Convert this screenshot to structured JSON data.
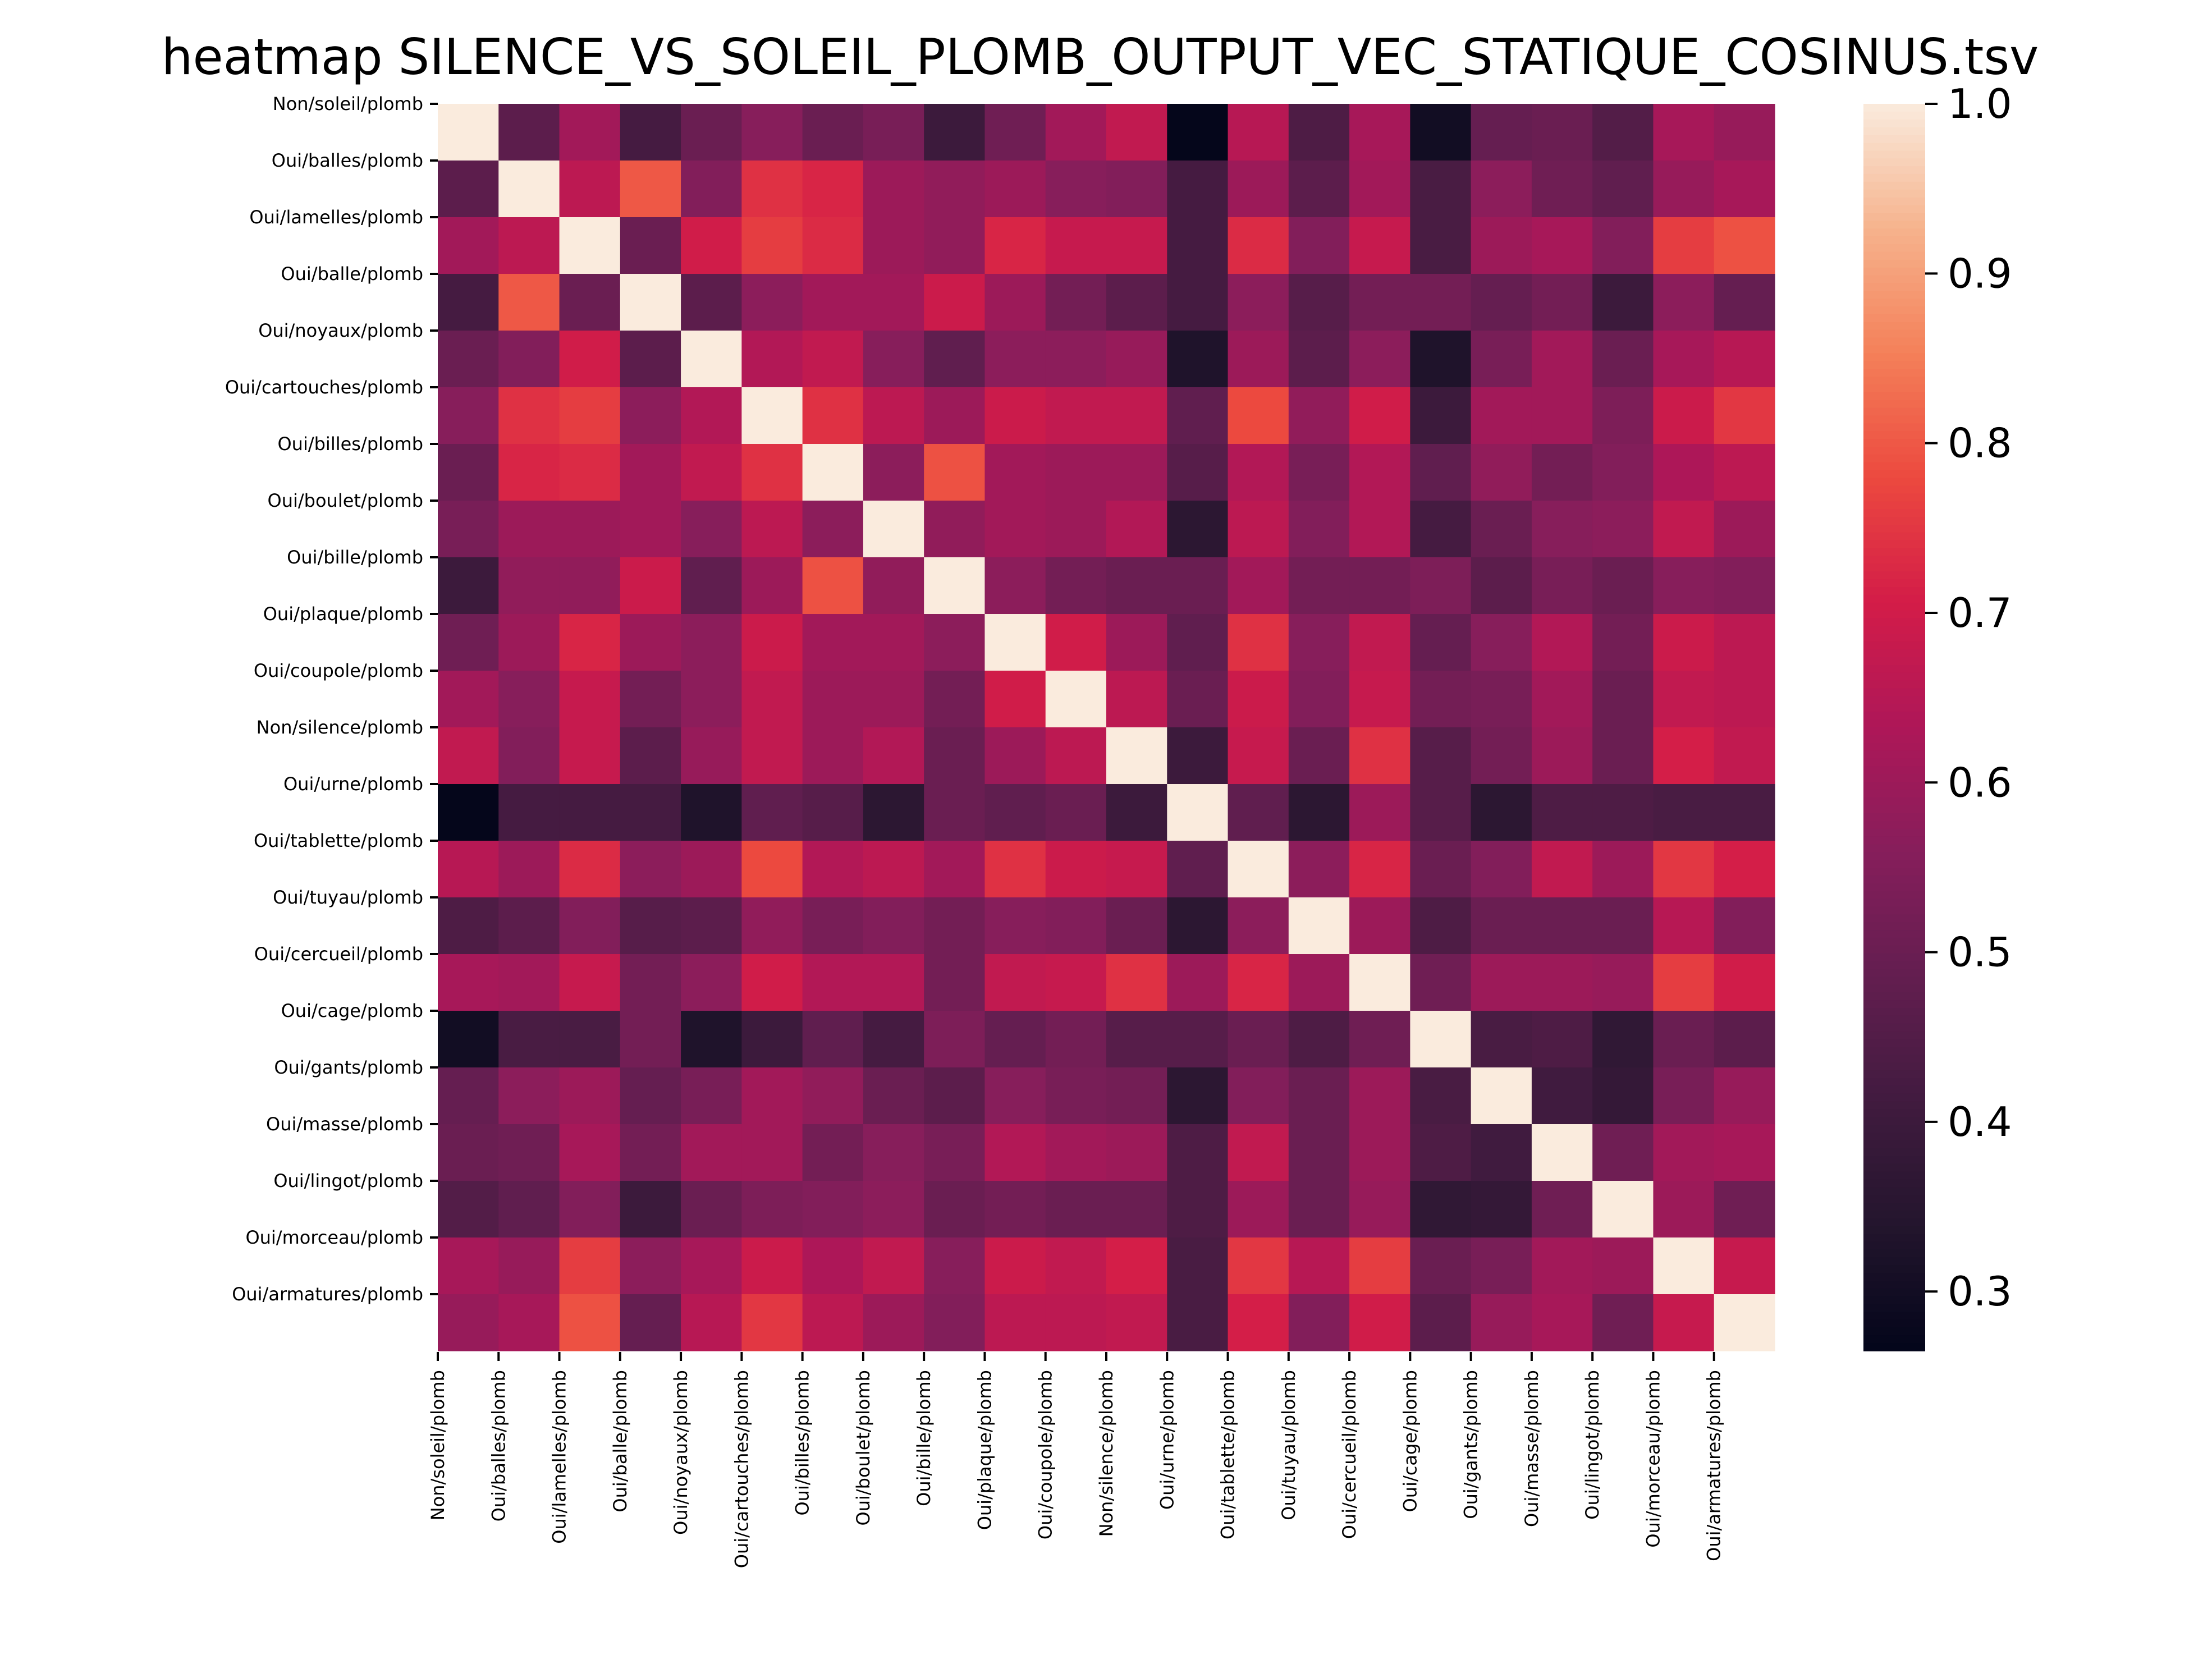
{
  "chart_data": {
    "type": "heatmap",
    "title": "heatmap SILENCE_VS_SOLEIL_PLOMB_OUTPUT_VEC_STATIQUE_COSINUS.tsv",
    "row_labels": [
      "Non/soleil/plomb",
      "Oui/balles/plomb",
      "Oui/lamelles/plomb",
      "Oui/balle/plomb",
      "Oui/noyaux/plomb",
      "Oui/cartouches/plomb",
      "Oui/billes/plomb",
      "Oui/boulet/plomb",
      "Oui/bille/plomb",
      "Oui/plaque/plomb",
      "Oui/coupole/plomb",
      "Non/silence/plomb",
      "Oui/urne/plomb",
      "Oui/tablette/plomb",
      "Oui/tuyau/plomb",
      "Oui/cercueil/plomb",
      "Oui/cage/plomb",
      "Oui/gants/plomb",
      "Oui/masse/plomb",
      "Oui/lingot/plomb",
      "Oui/morceau/plomb",
      "Oui/armatures/plomb"
    ],
    "col_labels": [
      "Non/soleil/plomb",
      "Oui/balles/plomb",
      "Oui/lamelles/plomb",
      "Oui/balle/plomb",
      "Oui/noyaux/plomb",
      "Oui/cartouches/plomb",
      "Oui/billes/plomb",
      "Oui/boulet/plomb",
      "Oui/bille/plomb",
      "Oui/plaque/plomb",
      "Oui/coupole/plomb",
      "Non/silence/plomb",
      "Oui/urne/plomb",
      "Oui/tablette/plomb",
      "Oui/tuyau/plomb",
      "Oui/cercueil/plomb",
      "Oui/cage/plomb",
      "Oui/gants/plomb",
      "Oui/masse/plomb",
      "Oui/lingot/plomb",
      "Oui/morceau/plomb",
      "Oui/armatures/plomb"
    ],
    "values": [
      [
        1.0,
        0.47,
        0.61,
        0.42,
        0.5,
        0.56,
        0.5,
        0.53,
        0.4,
        0.51,
        0.61,
        0.67,
        0.27,
        0.65,
        0.44,
        0.62,
        0.3,
        0.49,
        0.5,
        0.45,
        0.62,
        0.59
      ],
      [
        0.47,
        1.0,
        0.66,
        0.8,
        0.55,
        0.74,
        0.72,
        0.6,
        0.58,
        0.6,
        0.56,
        0.55,
        0.42,
        0.6,
        0.47,
        0.61,
        0.43,
        0.57,
        0.51,
        0.48,
        0.59,
        0.62
      ],
      [
        0.61,
        0.66,
        1.0,
        0.5,
        0.7,
        0.76,
        0.73,
        0.6,
        0.58,
        0.72,
        0.68,
        0.68,
        0.42,
        0.73,
        0.55,
        0.68,
        0.43,
        0.6,
        0.62,
        0.55,
        0.76,
        0.79
      ],
      [
        0.42,
        0.8,
        0.5,
        1.0,
        0.47,
        0.57,
        0.61,
        0.61,
        0.69,
        0.6,
        0.52,
        0.47,
        0.42,
        0.57,
        0.46,
        0.52,
        0.52,
        0.49,
        0.52,
        0.4,
        0.57,
        0.49
      ],
      [
        0.5,
        0.55,
        0.7,
        0.47,
        1.0,
        0.64,
        0.67,
        0.56,
        0.48,
        0.57,
        0.57,
        0.59,
        0.33,
        0.6,
        0.47,
        0.57,
        0.33,
        0.53,
        0.61,
        0.5,
        0.62,
        0.65
      ],
      [
        0.56,
        0.74,
        0.76,
        0.57,
        0.64,
        1.0,
        0.74,
        0.66,
        0.6,
        0.69,
        0.67,
        0.67,
        0.48,
        0.78,
        0.58,
        0.7,
        0.4,
        0.61,
        0.61,
        0.54,
        0.69,
        0.75
      ],
      [
        0.5,
        0.72,
        0.73,
        0.61,
        0.67,
        0.74,
        1.0,
        0.57,
        0.79,
        0.61,
        0.6,
        0.6,
        0.46,
        0.64,
        0.53,
        0.64,
        0.48,
        0.58,
        0.52,
        0.55,
        0.63,
        0.66
      ],
      [
        0.53,
        0.6,
        0.6,
        0.61,
        0.56,
        0.66,
        0.57,
        1.0,
        0.58,
        0.61,
        0.6,
        0.64,
        0.36,
        0.66,
        0.55,
        0.64,
        0.42,
        0.5,
        0.56,
        0.57,
        0.67,
        0.6
      ],
      [
        0.4,
        0.58,
        0.58,
        0.69,
        0.48,
        0.6,
        0.79,
        0.58,
        1.0,
        0.57,
        0.52,
        0.5,
        0.5,
        0.61,
        0.52,
        0.52,
        0.54,
        0.47,
        0.53,
        0.5,
        0.56,
        0.55
      ],
      [
        0.51,
        0.6,
        0.72,
        0.6,
        0.57,
        0.69,
        0.61,
        0.61,
        0.57,
        1.0,
        0.7,
        0.6,
        0.48,
        0.74,
        0.56,
        0.67,
        0.49,
        0.56,
        0.64,
        0.52,
        0.69,
        0.66
      ],
      [
        0.61,
        0.56,
        0.68,
        0.52,
        0.57,
        0.67,
        0.6,
        0.6,
        0.52,
        0.7,
        1.0,
        0.66,
        0.5,
        0.69,
        0.55,
        0.68,
        0.52,
        0.53,
        0.61,
        0.5,
        0.67,
        0.66
      ],
      [
        0.67,
        0.55,
        0.68,
        0.47,
        0.59,
        0.67,
        0.6,
        0.64,
        0.5,
        0.6,
        0.66,
        1.0,
        0.4,
        0.68,
        0.5,
        0.74,
        0.46,
        0.52,
        0.6,
        0.5,
        0.71,
        0.67
      ],
      [
        0.27,
        0.42,
        0.42,
        0.42,
        0.33,
        0.48,
        0.46,
        0.36,
        0.5,
        0.48,
        0.5,
        0.4,
        1.0,
        0.48,
        0.36,
        0.6,
        0.46,
        0.36,
        0.44,
        0.44,
        0.43,
        0.43
      ],
      [
        0.65,
        0.6,
        0.73,
        0.57,
        0.6,
        0.78,
        0.64,
        0.66,
        0.61,
        0.74,
        0.69,
        0.68,
        0.48,
        1.0,
        0.57,
        0.72,
        0.5,
        0.55,
        0.67,
        0.6,
        0.75,
        0.71
      ],
      [
        0.44,
        0.47,
        0.55,
        0.46,
        0.47,
        0.58,
        0.53,
        0.55,
        0.52,
        0.56,
        0.55,
        0.5,
        0.36,
        0.57,
        1.0,
        0.6,
        0.44,
        0.5,
        0.5,
        0.5,
        0.65,
        0.55
      ],
      [
        0.62,
        0.61,
        0.68,
        0.52,
        0.57,
        0.7,
        0.64,
        0.64,
        0.52,
        0.67,
        0.68,
        0.74,
        0.6,
        0.72,
        0.6,
        1.0,
        0.51,
        0.6,
        0.6,
        0.59,
        0.76,
        0.7
      ],
      [
        0.3,
        0.43,
        0.43,
        0.52,
        0.33,
        0.4,
        0.48,
        0.42,
        0.54,
        0.49,
        0.52,
        0.46,
        0.46,
        0.5,
        0.44,
        0.51,
        1.0,
        0.43,
        0.44,
        0.37,
        0.5,
        0.47
      ],
      [
        0.49,
        0.57,
        0.6,
        0.49,
        0.53,
        0.61,
        0.58,
        0.5,
        0.47,
        0.56,
        0.53,
        0.52,
        0.36,
        0.55,
        0.5,
        0.6,
        0.43,
        1.0,
        0.41,
        0.38,
        0.53,
        0.59
      ],
      [
        0.5,
        0.51,
        0.62,
        0.52,
        0.61,
        0.61,
        0.52,
        0.56,
        0.53,
        0.64,
        0.61,
        0.6,
        0.44,
        0.67,
        0.5,
        0.6,
        0.44,
        0.41,
        1.0,
        0.51,
        0.61,
        0.62
      ],
      [
        0.45,
        0.48,
        0.55,
        0.4,
        0.5,
        0.54,
        0.55,
        0.57,
        0.5,
        0.52,
        0.5,
        0.5,
        0.44,
        0.6,
        0.5,
        0.59,
        0.37,
        0.38,
        0.51,
        1.0,
        0.6,
        0.51
      ],
      [
        0.62,
        0.59,
        0.76,
        0.57,
        0.62,
        0.69,
        0.63,
        0.67,
        0.56,
        0.69,
        0.67,
        0.71,
        0.43,
        0.75,
        0.65,
        0.76,
        0.5,
        0.53,
        0.61,
        0.6,
        1.0,
        0.68
      ],
      [
        0.59,
        0.62,
        0.79,
        0.49,
        0.65,
        0.75,
        0.66,
        0.6,
        0.55,
        0.66,
        0.66,
        0.67,
        0.43,
        0.71,
        0.55,
        0.7,
        0.47,
        0.59,
        0.62,
        0.51,
        0.68,
        1.0
      ]
    ],
    "colorbar": {
      "min": 0.265,
      "max": 1.0,
      "ticks": [
        "0.3",
        "0.4",
        "0.5",
        "0.6",
        "0.7",
        "0.8",
        "0.9",
        "1.0"
      ],
      "colormap": "rocket"
    }
  }
}
